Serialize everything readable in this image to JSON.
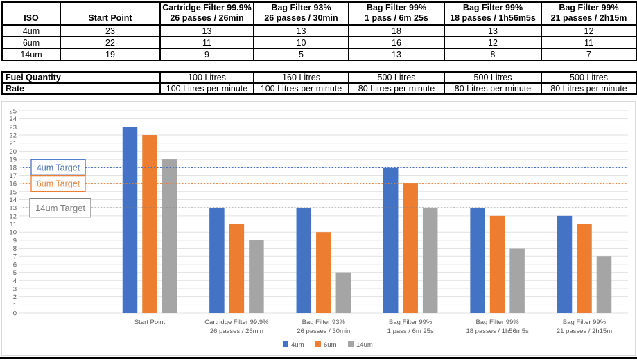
{
  "colors": {
    "series_4um": "#4472C4",
    "series_6um": "#ED7D31",
    "series_14um": "#A5A5A5",
    "target_4um": "#4472C4",
    "target_6um": "#ED7D31",
    "target_14um": "#7F7F7F",
    "gridline": "#E2E2E2",
    "axis_text": "#595959",
    "table_border": "#000000",
    "chart_border": "#D9D9D9"
  },
  "iso_table": {
    "headers": [
      {
        "line1": "ISO",
        "line2": ""
      },
      {
        "line1": "Start Point",
        "line2": ""
      },
      {
        "line1": "Cartridge Filter 99.9%",
        "line2": "26 passes / 26min"
      },
      {
        "line1": "Bag Filter 93%",
        "line2": "26 passes / 30min"
      },
      {
        "line1": "Bag Filter 99%",
        "line2": "1 pass / 6m 25s"
      },
      {
        "line1": "Bag Filter 99%",
        "line2": "18 passes / 1h56m5s"
      },
      {
        "line1": "Bag Filter 99%",
        "line2": "21 passes / 2h15m"
      }
    ],
    "rows": [
      {
        "label": "4um",
        "values": [
          "23",
          "13",
          "13",
          "18",
          "13",
          "12"
        ]
      },
      {
        "label": "6um",
        "values": [
          "22",
          "11",
          "10",
          "16",
          "12",
          "11"
        ]
      },
      {
        "label": "14um",
        "values": [
          "19",
          "9",
          "5",
          "13",
          "8",
          "7"
        ]
      }
    ]
  },
  "fuel_table": {
    "rows": [
      {
        "label": "Fuel Quantity",
        "values": [
          "100 Litres",
          "160 Litres",
          "500 Litres",
          "500 Litres",
          "500 Litres"
        ]
      },
      {
        "label": "Rate",
        "values": [
          "100 Litres per minute",
          "100 Litres per minute",
          "80 Litres per minute",
          "80 Litres per minute",
          "80 Litres per minute"
        ]
      }
    ]
  },
  "chart_data": {
    "type": "bar",
    "title": "",
    "xlabel": "",
    "ylabel": "",
    "ylim": [
      0,
      25
    ],
    "ytick_step": 1,
    "grid": true,
    "legend_position": "bottom",
    "categories": [
      {
        "line1": "Start Point",
        "line2": ""
      },
      {
        "line1": "Cartridge Filter 99.9%",
        "line2": "26 passes / 26min"
      },
      {
        "line1": "Bag Filter 93%",
        "line2": "26 passes / 30min"
      },
      {
        "line1": "Bag Filter 99%",
        "line2": "1 pass / 6m 25s"
      },
      {
        "line1": "Bag Filter 99%",
        "line2": "18 passes / 1h56m5s"
      },
      {
        "line1": "Bag Filter 99%",
        "line2": "21 passes / 2h15m"
      }
    ],
    "series": [
      {
        "name": "4um",
        "color": "#4472C4",
        "values": [
          23,
          13,
          13,
          18,
          13,
          12
        ]
      },
      {
        "name": "6um",
        "color": "#ED7D31",
        "values": [
          22,
          11,
          10,
          16,
          12,
          11
        ]
      },
      {
        "name": "14um",
        "color": "#A5A5A5",
        "values": [
          19,
          9,
          5,
          13,
          8,
          7
        ]
      }
    ],
    "targets": [
      {
        "label": "4um Target",
        "value": 18,
        "color": "#4472C4"
      },
      {
        "label": "6um Target",
        "value": 16,
        "color": "#ED7D31"
      },
      {
        "label": "14um Target",
        "value": 13,
        "color": "#7F7F7F"
      }
    ],
    "legend": [
      "4um",
      "6um",
      "14um"
    ]
  }
}
